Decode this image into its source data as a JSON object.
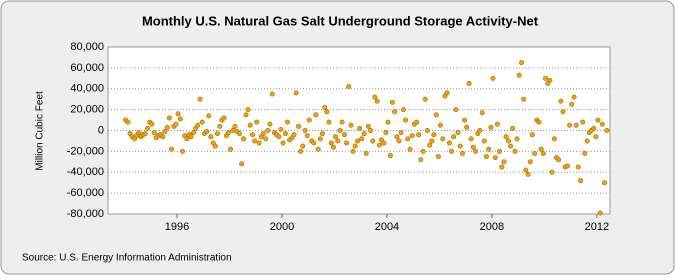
{
  "chart_data": {
    "type": "scatter",
    "title": "Monthly U.S. Natural Gas Salt Underground Storage Activity-Net",
    "y_label": "Million Cubic Feet",
    "source": "Source: U.S. Energy Information Administration",
    "color": "#e8a317",
    "grid": true,
    "xlim": [
      1993.37,
      2012.5
    ],
    "xticks": [
      1996,
      2000,
      2004,
      2008,
      2012
    ],
    "ylim": [
      -80000,
      80000
    ],
    "yticks": [
      {
        "value": -80000,
        "label": "-80,000"
      },
      {
        "value": -60000,
        "label": "-60,000"
      },
      {
        "value": -40000,
        "label": "-40,000"
      },
      {
        "value": -20000,
        "label": "-20,000"
      },
      0,
      {
        "value": 20000,
        "label": "20,000"
      },
      {
        "value": 40000,
        "label": "40,000"
      },
      {
        "value": 60000,
        "label": "60,000"
      },
      {
        "value": 80000,
        "label": "80,000"
      }
    ],
    "x": [
      1994.04,
      1994.13,
      1994.21,
      1994.29,
      1994.38,
      1994.46,
      1994.54,
      1994.63,
      1994.71,
      1994.79,
      1994.88,
      1994.96,
      1995.04,
      1995.13,
      1995.21,
      1995.29,
      1995.38,
      1995.46,
      1995.54,
      1995.63,
      1995.71,
      1995.79,
      1995.88,
      1995.96,
      1996.04,
      1996.13,
      1996.21,
      1996.29,
      1996.38,
      1996.46,
      1996.54,
      1996.63,
      1996.71,
      1996.79,
      1996.88,
      1996.96,
      1997.04,
      1997.13,
      1997.21,
      1997.29,
      1997.38,
      1997.46,
      1997.54,
      1997.63,
      1997.71,
      1997.79,
      1997.88,
      1997.96,
      1998.04,
      1998.13,
      1998.21,
      1998.29,
      1998.38,
      1998.46,
      1998.54,
      1998.63,
      1998.71,
      1998.79,
      1998.88,
      1998.96,
      1999.04,
      1999.13,
      1999.21,
      1999.29,
      1999.38,
      1999.46,
      1999.54,
      1999.63,
      1999.71,
      1999.79,
      1999.88,
      1999.96,
      2000.04,
      2000.13,
      2000.21,
      2000.29,
      2000.38,
      2000.46,
      2000.54,
      2000.63,
      2000.71,
      2000.79,
      2000.88,
      2000.96,
      2001.04,
      2001.13,
      2001.21,
      2001.29,
      2001.38,
      2001.46,
      2001.54,
      2001.63,
      2001.71,
      2001.79,
      2001.88,
      2001.96,
      2002.04,
      2002.13,
      2002.21,
      2002.29,
      2002.38,
      2002.46,
      2002.54,
      2002.63,
      2002.71,
      2002.79,
      2002.88,
      2002.96,
      2003.04,
      2003.13,
      2003.21,
      2003.29,
      2003.38,
      2003.46,
      2003.54,
      2003.63,
      2003.71,
      2003.79,
      2003.88,
      2003.96,
      2004.04,
      2004.13,
      2004.21,
      2004.29,
      2004.38,
      2004.46,
      2004.54,
      2004.63,
      2004.71,
      2004.79,
      2004.88,
      2004.96,
      2005.04,
      2005.13,
      2005.21,
      2005.29,
      2005.38,
      2005.46,
      2005.54,
      2005.63,
      2005.71,
      2005.79,
      2005.88,
      2005.96,
      2006.04,
      2006.13,
      2006.21,
      2006.29,
      2006.38,
      2006.46,
      2006.54,
      2006.63,
      2006.71,
      2006.79,
      2006.88,
      2006.96,
      2007.04,
      2007.13,
      2007.21,
      2007.29,
      2007.38,
      2007.46,
      2007.54,
      2007.63,
      2007.71,
      2007.79,
      2007.88,
      2007.96,
      2008.04,
      2008.13,
      2008.21,
      2008.29,
      2008.38,
      2008.46,
      2008.54,
      2008.63,
      2008.71,
      2008.79,
      2008.88,
      2008.96,
      2009.04,
      2009.13,
      2009.21,
      2009.29,
      2009.38,
      2009.46,
      2009.54,
      2009.63,
      2009.71,
      2009.79,
      2009.88,
      2009.96,
      2010.04,
      2010.13,
      2010.21,
      2010.29,
      2010.38,
      2010.46,
      2010.54,
      2010.63,
      2010.71,
      2010.79,
      2010.88,
      2010.96,
      2011.04,
      2011.13,
      2011.21,
      2011.29,
      2011.38,
      2011.46,
      2011.54,
      2011.63,
      2011.71,
      2011.79,
      2011.88,
      2011.96,
      2012.04,
      2012.13,
      2012.21,
      2012.29,
      2012.38
    ],
    "values": [
      10000,
      8000,
      -3000,
      -6000,
      -8000,
      -5000,
      -2000,
      -6000,
      -4000,
      -3000,
      2000,
      8000,
      6000,
      -2000,
      -7000,
      -5000,
      -4000,
      -6000,
      -1000,
      3000,
      12000,
      -18000,
      4000,
      6000,
      16000,
      11000,
      -20000,
      -5000,
      -8000,
      -4000,
      -6000,
      -2000,
      2000,
      5000,
      30000,
      8000,
      -3000,
      -1000,
      14000,
      -6000,
      -12000,
      -15000,
      -3000,
      4000,
      10000,
      12000,
      -5000,
      -2000,
      -18000,
      0,
      4000,
      -1000,
      -3000,
      -32000,
      -8000,
      15000,
      20000,
      5000,
      -4000,
      -10000,
      8000,
      -12000,
      -6000,
      -3000,
      -8000,
      0,
      6000,
      35000,
      -2000,
      -4000,
      -6000,
      1000,
      -12000,
      -3000,
      8000,
      -9000,
      -7000,
      -4000,
      36000,
      4000,
      -20000,
      -15000,
      0,
      -5000,
      10000,
      -10000,
      -12000,
      15000,
      -18000,
      -8000,
      -3000,
      22000,
      18000,
      8000,
      -12000,
      -16000,
      -6000,
      -10000,
      0,
      8000,
      -4000,
      -12000,
      42000,
      5000,
      -20000,
      -15000,
      -10000,
      2000,
      -8000,
      -3000,
      -22000,
      4000,
      0,
      -10000,
      32000,
      28000,
      -14000,
      -9000,
      -12000,
      -2000,
      8000,
      -24000,
      27000,
      18000,
      -6000,
      -10000,
      -2000,
      20000,
      10000,
      -8000,
      -18000,
      -5000,
      6000,
      8000,
      -4000,
      -28000,
      -20000,
      30000,
      0,
      -14000,
      -10000,
      -4000,
      15000,
      -25000,
      5000,
      -8000,
      33000,
      36000,
      -12000,
      -20000,
      -6000,
      20000,
      -2000,
      -15000,
      -22000,
      10000,
      3000,
      45000,
      -8000,
      -16000,
      -20000,
      -3000,
      0,
      17000,
      -10000,
      -25000,
      -18000,
      3000,
      50000,
      -26000,
      6000,
      -20000,
      -35000,
      -30000,
      -6000,
      -10000,
      -15000,
      2000,
      -20000,
      -8000,
      53000,
      65000,
      30000,
      -38000,
      -42000,
      -30000,
      -4000,
      -22000,
      10000,
      8000,
      -18000,
      -22000,
      50000,
      45000,
      48000,
      -40000,
      -8000,
      -26000,
      -28000,
      28000,
      18000,
      -35000,
      -34000,
      5000,
      25000,
      32000,
      5000,
      -35000,
      -48000,
      8000,
      -22000,
      -10000,
      -2000,
      0,
      2000,
      -6000,
      10000,
      -79000,
      6000,
      -50000,
      0
    ]
  }
}
